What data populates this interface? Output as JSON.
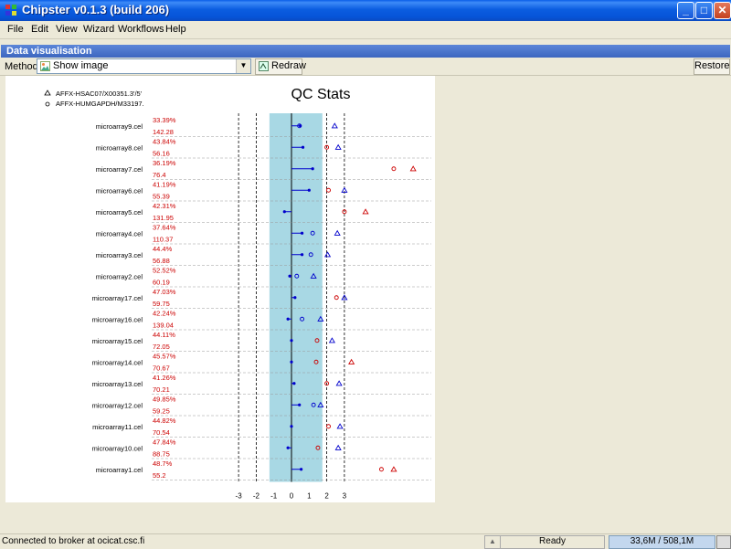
{
  "window": {
    "title": "Chipster v0.1.3 (build 206)",
    "buttons": {
      "minimize": "_",
      "maximize": "□",
      "close": "✕"
    }
  },
  "menu": [
    "File",
    "Edit",
    "View",
    "Wizard",
    "Workflows",
    "Help"
  ],
  "panel": {
    "title": "Data visualisation"
  },
  "toolbar": {
    "method_label": "Method:",
    "method_value": "Show image",
    "redraw_label": "Redraw",
    "restore_label": "Restore"
  },
  "status": {
    "connection": "Connected to broker at ocicat.csc.fi",
    "state": "Ready",
    "memory": "33,6M / 508,1M"
  },
  "colors": {
    "blue": "#0000cc",
    "red": "#cc0000",
    "band": "#a8d8e4"
  },
  "chart_data": {
    "type": "scatter",
    "title": "QC Stats",
    "legend": [
      {
        "marker": "triangle",
        "label": "AFFX-HSAC07/X00351.3'/5'"
      },
      {
        "marker": "circle",
        "label": "AFFX-HUMGAPDH/M33197."
      }
    ],
    "legend_position": "top-left",
    "xticks": [
      -3,
      -2,
      -1,
      0,
      1,
      2,
      3
    ],
    "xlim": [
      -4.1,
      4.3
    ],
    "shaded_band": [
      -1.25,
      1.75
    ],
    "dashed_lines": [
      -3,
      -2,
      2,
      3
    ],
    "grid": "horizontal dashed",
    "rows": [
      {
        "name": "microarray9.cel",
        "pct": "33.39%",
        "bg": "142.28",
        "scale": 0.5,
        "tri": 2.45,
        "tri_color": "blue",
        "circ": 0.45,
        "circ_color": "blue"
      },
      {
        "name": "microarray8.cel",
        "pct": "43.84%",
        "bg": "56.16",
        "scale": 0.65,
        "tri": 2.65,
        "tri_color": "blue",
        "circ": 2.0,
        "circ_color": "red"
      },
      {
        "name": "microarray7.cel",
        "pct": "36.19%",
        "bg": "76.4",
        "scale": 1.2,
        "tri": 6.9,
        "tri_color": "red",
        "circ": 5.8,
        "circ_color": "red"
      },
      {
        "name": "microarray6.cel",
        "pct": "41.19%",
        "bg": "55.39",
        "scale": 1.0,
        "tri": 3.0,
        "tri_color": "blue",
        "circ": 2.1,
        "circ_color": "red"
      },
      {
        "name": "microarray5.cel",
        "pct": "42.31%",
        "bg": "131.95",
        "scale": -0.4,
        "tri": 4.2,
        "tri_color": "red",
        "circ": 3.0,
        "circ_color": "red"
      },
      {
        "name": "microarray4.cel",
        "pct": "37.64%",
        "bg": "110.37",
        "scale": 0.6,
        "tri": 2.6,
        "tri_color": "blue",
        "circ": 1.2,
        "circ_color": "blue"
      },
      {
        "name": "microarray3.cel",
        "pct": "44.4%",
        "bg": "56.88",
        "scale": 0.6,
        "tri": 2.05,
        "tri_color": "blue",
        "circ": 1.1,
        "circ_color": "blue"
      },
      {
        "name": "microarray2.cel",
        "pct": "52.52%",
        "bg": "60.19",
        "scale": -0.1,
        "tri": 1.25,
        "tri_color": "blue",
        "circ": 0.3,
        "circ_color": "blue"
      },
      {
        "name": "microarray17.cel",
        "pct": "47.03%",
        "bg": "59.75",
        "scale": 0.2,
        "tri": 3.0,
        "tri_color": "blue",
        "circ": 2.55,
        "circ_color": "red"
      },
      {
        "name": "microarray16.cel",
        "pct": "42.24%",
        "bg": "139.04",
        "scale": -0.2,
        "tri": 1.65,
        "tri_color": "blue",
        "circ": 0.6,
        "circ_color": "blue"
      },
      {
        "name": "microarray15.cel",
        "pct": "44.11%",
        "bg": "72.05",
        "scale": 0.0,
        "tri": 2.3,
        "tri_color": "blue",
        "circ": 1.45,
        "circ_color": "red"
      },
      {
        "name": "microarray14.cel",
        "pct": "45.57%",
        "bg": "70.67",
        "scale": 0.0,
        "tri": 3.4,
        "tri_color": "red",
        "circ": 1.4,
        "circ_color": "red"
      },
      {
        "name": "microarray13.cel",
        "pct": "41.26%",
        "bg": "70.21",
        "scale": 0.15,
        "tri": 2.7,
        "tri_color": "blue",
        "circ": 2.0,
        "circ_color": "red"
      },
      {
        "name": "microarray12.cel",
        "pct": "49.85%",
        "bg": "59.25",
        "scale": 0.45,
        "tri": 1.65,
        "tri_color": "blue",
        "circ": 1.25,
        "circ_color": "blue"
      },
      {
        "name": "microarray11.cel",
        "pct": "44.82%",
        "bg": "70.54",
        "scale": 0.0,
        "tri": 2.75,
        "tri_color": "blue",
        "circ": 2.1,
        "circ_color": "red"
      },
      {
        "name": "microarray10.cel",
        "pct": "47.84%",
        "bg": "88.75",
        "scale": -0.2,
        "tri": 2.65,
        "tri_color": "blue",
        "circ": 1.5,
        "circ_color": "red"
      },
      {
        "name": "microarray1.cel",
        "pct": "48.7%",
        "bg": "55.2",
        "scale": 0.55,
        "tri": 5.8,
        "tri_color": "red",
        "circ": 5.1,
        "circ_color": "red"
      }
    ]
  }
}
